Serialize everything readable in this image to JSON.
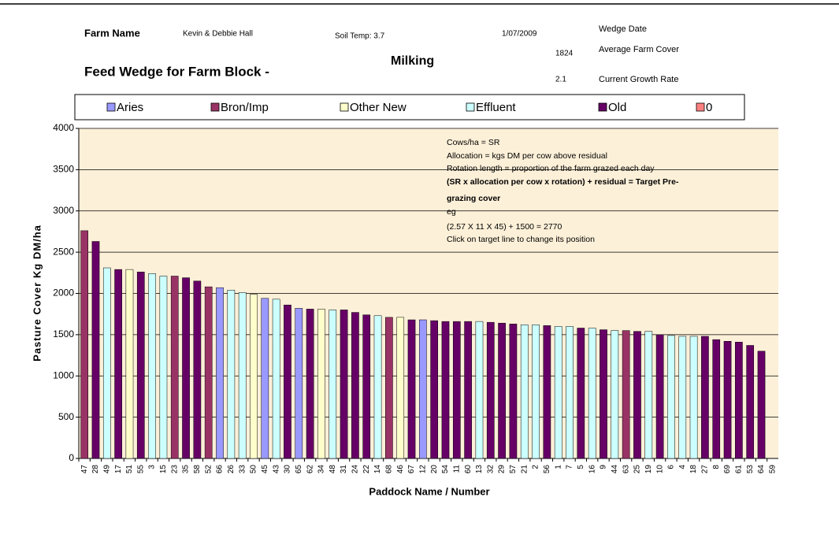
{
  "header": {
    "farm_label": "Farm Name",
    "farm_name": "Kevin & Debbie Hall",
    "soil_temp": "Soil Temp: 3.7",
    "wedge_date": "1/07/2009",
    "wedge_date_label": "Wedge Date",
    "average_cover": "1824",
    "average_cover_label": "Average Farm Cover",
    "growth_rate": "2.1",
    "growth_rate_label": "Current Growth Rate",
    "title": "Feed Wedge for Farm Block -",
    "block": "Milking"
  },
  "chart_data": {
    "type": "bar",
    "y_label": "Pasture Cover Kg DM/ha",
    "x_label": "Paddock Name / Number",
    "legend": [
      {
        "name": "Aries",
        "color": "#9999ff"
      },
      {
        "name": "Bron/Imp",
        "color": "#993366"
      },
      {
        "name": "Other New",
        "color": "#ffffcc"
      },
      {
        "name": "Effluent",
        "color": "#ccffff"
      },
      {
        "name": "Old",
        "color": "#660066"
      },
      {
        "name": "0",
        "color": "#ff8080"
      }
    ],
    "annotations": [
      {
        "text": "Cows/ha = SR",
        "bold": false
      },
      {
        "text": "Allocation = kgs DM per cow above residual",
        "bold": false
      },
      {
        "text": "Rotation length = proportion of the farm grazed each day",
        "bold": false
      },
      {
        "text": "(SR x allocation per cow x rotation) + residual = Target Pre-",
        "bold": true
      },
      {
        "text": "grazing cover",
        "bold": true
      },
      {
        "text": "eg",
        "bold": false
      },
      {
        "text": "(2.57 X 11 X 45) + 1500 = 2770",
        "bold": false
      },
      {
        "text": "Click on target line to change its position",
        "bold": false
      }
    ],
    "categories": [
      "47",
      "28",
      "49",
      "17",
      "51",
      "55",
      "3",
      "15",
      "23",
      "35",
      "58",
      "52",
      "66",
      "26",
      "33",
      "50",
      "45",
      "43",
      "30",
      "65",
      "62",
      "34",
      "48",
      "31",
      "24",
      "22",
      "14",
      "68",
      "46",
      "67",
      "12",
      "20",
      "54",
      "11",
      "60",
      "13",
      "32",
      "29",
      "57",
      "21",
      "2",
      "56",
      "1",
      "7",
      "5",
      "16",
      "9",
      "44",
      "63",
      "25",
      "19",
      "10",
      "6",
      "4",
      "18",
      "27",
      "8",
      "69",
      "61",
      "53",
      "64",
      "59"
    ],
    "values": [
      2760,
      2630,
      2310,
      2290,
      2290,
      2260,
      2240,
      2210,
      2210,
      2190,
      2150,
      2080,
      2070,
      2040,
      2010,
      1990,
      1940,
      1930,
      1860,
      1820,
      1810,
      1810,
      1800,
      1800,
      1770,
      1740,
      1730,
      1710,
      1710,
      1680,
      1680,
      1670,
      1660,
      1660,
      1660,
      1660,
      1650,
      1640,
      1630,
      1620,
      1620,
      1610,
      1600,
      1600,
      1580,
      1580,
      1560,
      1550,
      1550,
      1540,
      1540,
      1500,
      1490,
      1480,
      1480,
      1480,
      1440,
      1420,
      1410,
      1370,
      1300,
      null
    ],
    "colors": [
      "#993366",
      "#660066",
      "#ccffff",
      "#660066",
      "#ffffcc",
      "#660066",
      "#ccffff",
      "#ccffff",
      "#993366",
      "#660066",
      "#660066",
      "#993366",
      "#9999ff",
      "#ccffff",
      "#ccffff",
      "#ffffcc",
      "#9999ff",
      "#ccffff",
      "#660066",
      "#9999ff",
      "#660066",
      "#ffffcc",
      "#ccffff",
      "#660066",
      "#660066",
      "#660066",
      "#ccffff",
      "#993366",
      "#ffffcc",
      "#660066",
      "#9999ff",
      "#660066",
      "#660066",
      "#660066",
      "#660066",
      "#ccffff",
      "#660066",
      "#660066",
      "#660066",
      "#ccffff",
      "#ccffff",
      "#660066",
      "#ccffff",
      "#ccffff",
      "#660066",
      "#ccffff",
      "#660066",
      "#ccffff",
      "#993366",
      "#660066",
      "#ccffff",
      "#660066",
      "#ccffff",
      "#ccffff",
      "#ccffff",
      "#660066",
      "#660066",
      "#660066",
      "#660066",
      "#660066",
      "#660066",
      "#660066"
    ],
    "ylim": [
      0,
      4000
    ],
    "yticks": [
      0,
      500,
      1000,
      1500,
      2000,
      2500,
      3000,
      3500,
      4000
    ],
    "grid": true,
    "plot_background": "#fdf0d8"
  }
}
